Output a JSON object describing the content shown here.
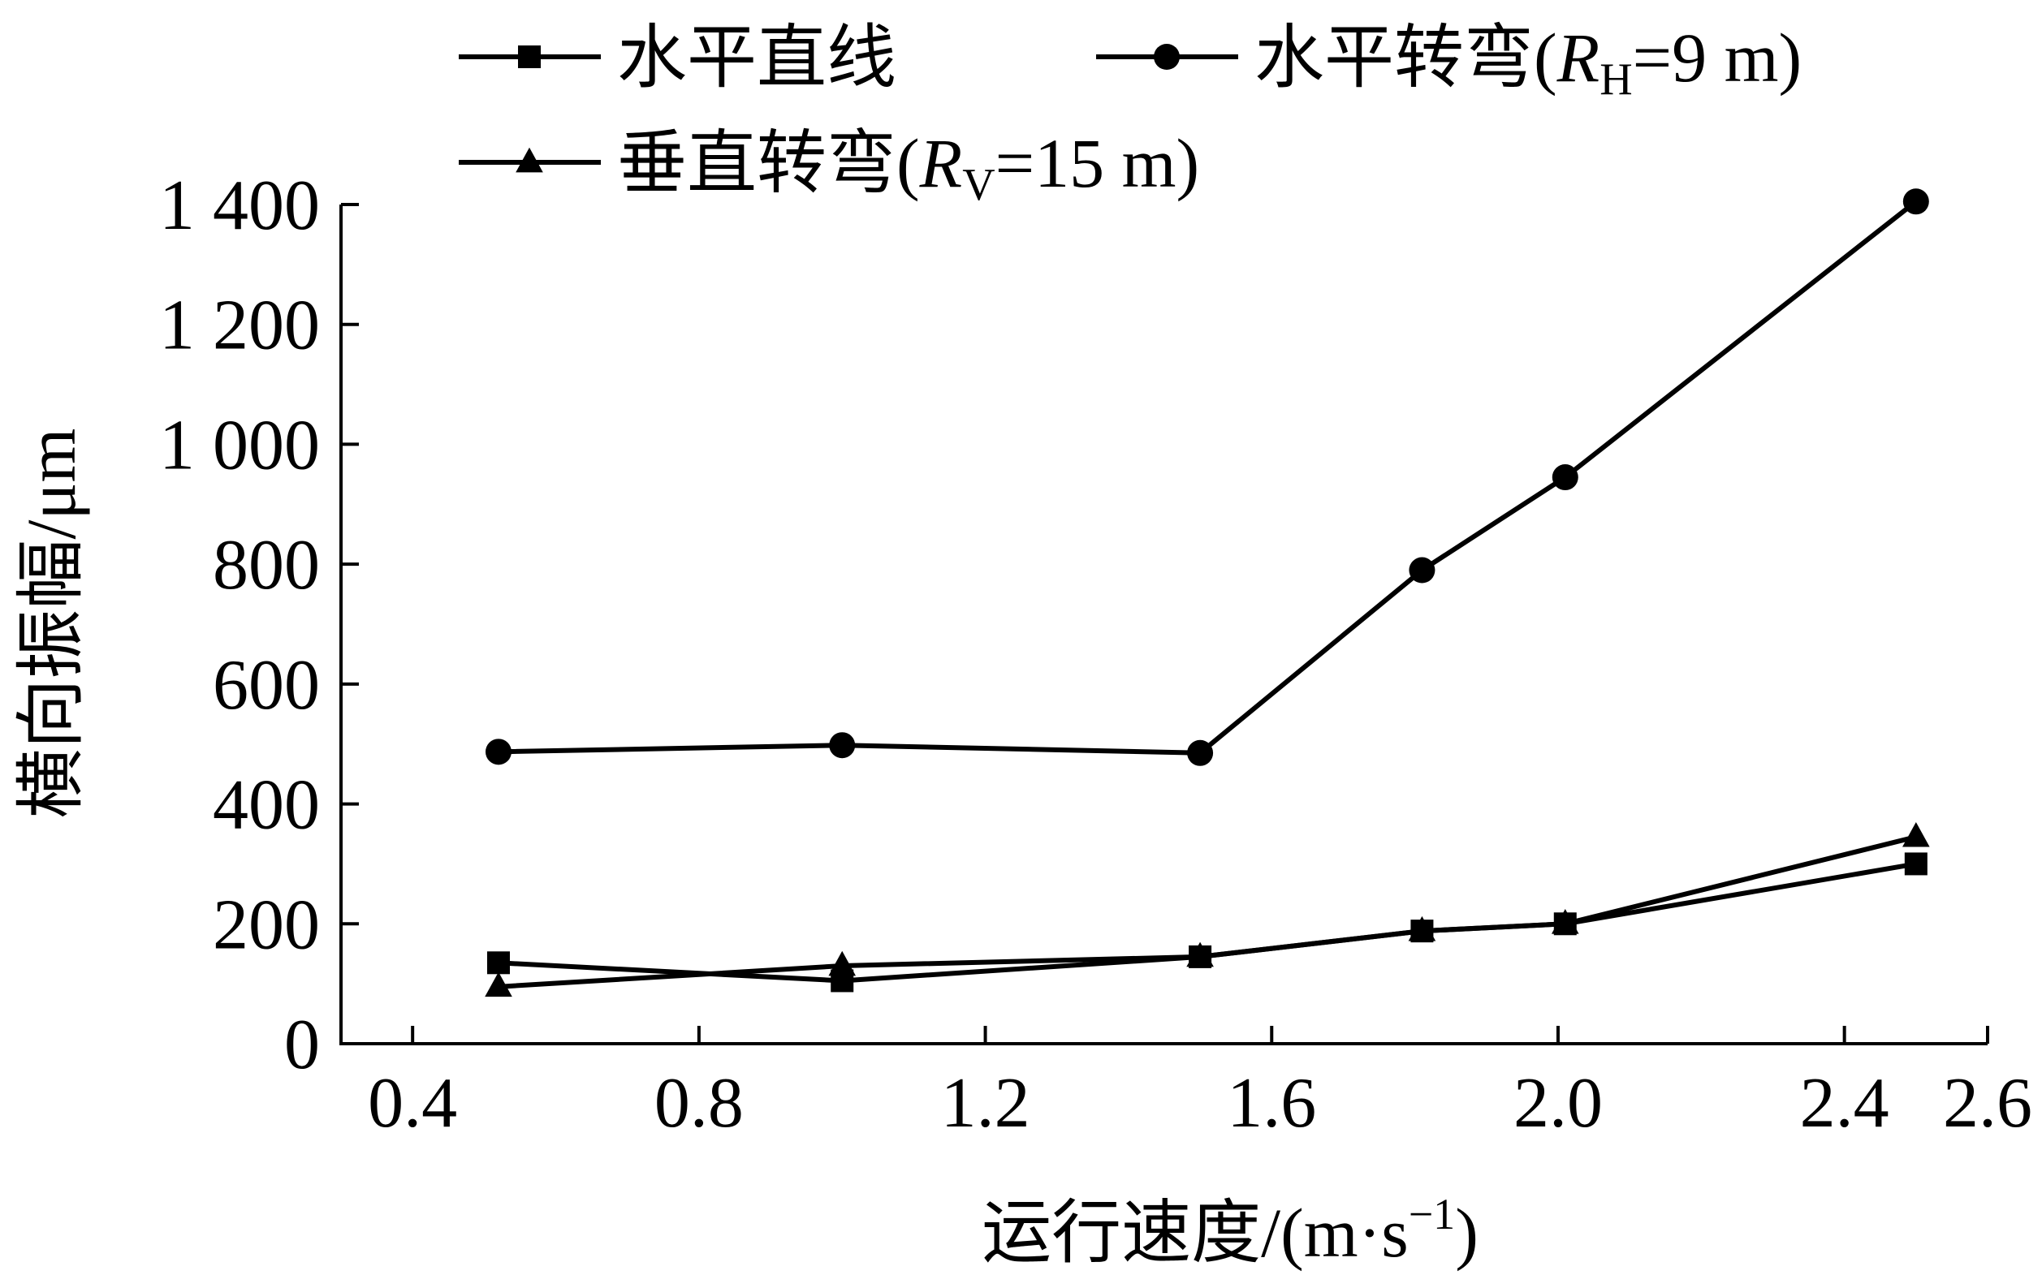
{
  "chart_data": {
    "type": "line",
    "xlabel": "运行速度/(m·s",
    "xlabel_sup": "−1",
    "xlabel_end": ")",
    "ylabel": "横向振幅/μm",
    "xlim": [
      0.3,
      2.6
    ],
    "ylim": [
      0,
      1400
    ],
    "xticks": [
      0.4,
      0.8,
      1.2,
      1.6,
      2.0,
      2.4,
      2.6
    ],
    "xtick_labels": [
      "0.4",
      "0.8",
      "1.2",
      "1.6",
      "2.0",
      "2.4",
      "2.6"
    ],
    "yticks": [
      0,
      200,
      400,
      600,
      800,
      1000,
      1200,
      1400
    ],
    "ytick_labels": [
      "0",
      "200",
      "400",
      "600",
      "800",
      "1 000",
      "1 200",
      "1 400"
    ],
    "grid": false,
    "legend_position": "top",
    "series": [
      {
        "name": "水平直线",
        "legend_text": "水平直线",
        "marker": "square",
        "color": "#000000",
        "x": [
          0.52,
          1.0,
          1.5,
          1.81,
          2.01,
          2.5
        ],
        "y": [
          135,
          105,
          145,
          188,
          200,
          300
        ]
      },
      {
        "name": "水平转弯(RH=9 m)",
        "legend_text": "水平转弯(",
        "legend_italic": "R",
        "legend_sub": "H",
        "legend_end": "=9 m)",
        "marker": "circle",
        "color": "#000000",
        "x": [
          0.52,
          1.0,
          1.5,
          1.81,
          2.01,
          2.5
        ],
        "y": [
          487,
          498,
          485,
          790,
          945,
          1405
        ]
      },
      {
        "name": "垂直转弯(RV=15 m)",
        "legend_text": "垂直转弯(",
        "legend_italic": "R",
        "legend_sub": "V",
        "legend_end": "=15 m)",
        "marker": "triangle",
        "color": "#000000",
        "x": [
          0.52,
          1.0,
          1.5,
          1.81,
          2.01,
          2.5
        ],
        "y": [
          95,
          130,
          145,
          188,
          200,
          345
        ]
      }
    ]
  }
}
